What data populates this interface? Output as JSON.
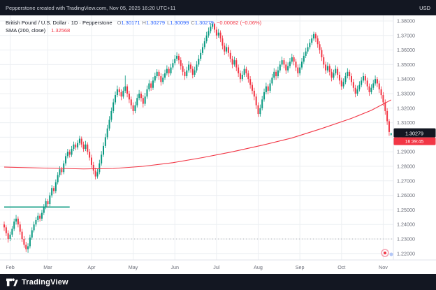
{
  "header": {
    "left_text": "Pepperstone created with TradingView.com, Nov 05, 2025 16:20 UTC+11",
    "currency": "USD"
  },
  "legend": {
    "title": "British Pound / U.S. Dollar · 1D · Pepperstone",
    "o_label": "O",
    "o": "1.30171",
    "h_label": "H",
    "h": "1.30279",
    "l_label": "L",
    "l": "1.30099",
    "c_label": "C",
    "c": "1.30279",
    "change": "−0.00082 (−0.06%)",
    "sma_label": "SMA (200, close)",
    "sma_value": "1.32568"
  },
  "footer": {
    "brand": "TradingView"
  },
  "axis": {
    "price_ticks": [
      "1.38000",
      "1.37000",
      "1.36000",
      "1.35000",
      "1.34000",
      "1.33000",
      "1.32000",
      "1.31000",
      "1.30000",
      "1.29000",
      "1.28000",
      "1.27000",
      "1.26000",
      "1.25000",
      "1.24000",
      "1.23000",
      "1.22000"
    ],
    "months": [
      {
        "label": "Feb",
        "index": 3
      },
      {
        "label": "Mar",
        "index": 22
      },
      {
        "label": "Apr",
        "index": 44
      },
      {
        "label": "May",
        "index": 65
      },
      {
        "label": "Jun",
        "index": 86
      },
      {
        "label": "Jul",
        "index": 107
      },
      {
        "label": "Aug",
        "index": 128
      },
      {
        "label": "Sep",
        "index": 149
      },
      {
        "label": "Oct",
        "index": 170
      },
      {
        "label": "Nov",
        "index": 191
      }
    ],
    "last_price": "1.30279",
    "countdown": "16:39:45"
  },
  "chart_data": {
    "type": "candlestick",
    "title": "British Pound / U.S. Dollar, 1D, Pepperstone",
    "ylabel": "USD",
    "ylim": [
      1.216,
      1.384
    ],
    "grid": true,
    "colors": {
      "up": "#089981",
      "down": "#f23645",
      "sma": "#f23645",
      "grid": "#eceff2",
      "axis_text": "#6a6d78"
    },
    "last": {
      "open": 1.30171,
      "high": 1.30279,
      "low": 1.30099,
      "close": 1.30279,
      "change": -0.00082,
      "change_pct": -0.06
    },
    "sma_200": {
      "name": "SMA (200, close)",
      "last_value": 1.32568,
      "points": [
        [
          0,
          1.2795
        ],
        [
          20,
          1.2788
        ],
        [
          40,
          1.2782
        ],
        [
          55,
          1.2785
        ],
        [
          70,
          1.28
        ],
        [
          85,
          1.2825
        ],
        [
          100,
          1.286
        ],
        [
          115,
          1.29
        ],
        [
          130,
          1.2945
        ],
        [
          145,
          1.2995
        ],
        [
          160,
          1.306
        ],
        [
          175,
          1.313
        ],
        [
          185,
          1.3185
        ],
        [
          195,
          1.3257
        ]
      ]
    },
    "horizontal_line": {
      "value": 1.252,
      "from_index": 0,
      "to_index": 33,
      "color": "#089981"
    },
    "dotted_level": 1.23,
    "candles": [
      [
        1.24,
        1.242,
        1.2355,
        1.238
      ],
      [
        1.238,
        1.2395,
        1.232,
        1.234
      ],
      [
        1.234,
        1.236,
        1.2275,
        1.23
      ],
      [
        1.23,
        1.235,
        1.2285,
        1.233
      ],
      [
        1.233,
        1.239,
        1.2315,
        1.237
      ],
      [
        1.237,
        1.244,
        1.2355,
        1.242
      ],
      [
        1.242,
        1.2465,
        1.24,
        1.244
      ],
      [
        1.244,
        1.2455,
        1.238,
        1.24
      ],
      [
        1.24,
        1.242,
        1.233,
        1.235
      ],
      [
        1.235,
        1.237,
        1.228,
        1.23
      ],
      [
        1.23,
        1.232,
        1.224,
        1.226
      ],
      [
        1.226,
        1.228,
        1.221,
        1.223
      ],
      [
        1.223,
        1.227,
        1.2205,
        1.225
      ],
      [
        1.225,
        1.233,
        1.2235,
        1.231
      ],
      [
        1.231,
        1.238,
        1.2295,
        1.236
      ],
      [
        1.236,
        1.242,
        1.2345,
        1.24
      ],
      [
        1.24,
        1.245,
        1.2385,
        1.243
      ],
      [
        1.243,
        1.248,
        1.2415,
        1.246
      ],
      [
        1.246,
        1.2475,
        1.242,
        1.244
      ],
      [
        1.244,
        1.25,
        1.2425,
        1.248
      ],
      [
        1.248,
        1.254,
        1.2465,
        1.252
      ],
      [
        1.252,
        1.258,
        1.2505,
        1.256
      ],
      [
        1.256,
        1.2575,
        1.252,
        1.254
      ],
      [
        1.254,
        1.262,
        1.2525,
        1.26
      ],
      [
        1.26,
        1.267,
        1.2585,
        1.265
      ],
      [
        1.265,
        1.2665,
        1.261,
        1.263
      ],
      [
        1.263,
        1.271,
        1.2615,
        1.269
      ],
      [
        1.269,
        1.276,
        1.2675,
        1.274
      ],
      [
        1.274,
        1.28,
        1.2725,
        1.278
      ],
      [
        1.278,
        1.2795,
        1.274,
        1.276
      ],
      [
        1.276,
        1.284,
        1.2745,
        1.282
      ],
      [
        1.282,
        1.289,
        1.2805,
        1.287
      ],
      [
        1.287,
        1.292,
        1.2855,
        1.29
      ],
      [
        1.29,
        1.2915,
        1.286,
        1.288
      ],
      [
        1.288,
        1.294,
        1.2865,
        1.292
      ],
      [
        1.292,
        1.297,
        1.2905,
        1.295
      ],
      [
        1.295,
        1.2965,
        1.291,
        1.293
      ],
      [
        1.293,
        1.298,
        1.2915,
        1.296
      ],
      [
        1.296,
        1.301,
        1.2945,
        1.299
      ],
      [
        1.299,
        1.3005,
        1.293,
        1.295
      ],
      [
        1.295,
        1.297,
        1.29,
        1.292
      ],
      [
        1.292,
        1.2975,
        1.2905,
        1.295
      ],
      [
        1.295,
        1.2965,
        1.288,
        1.29
      ],
      [
        1.29,
        1.292,
        1.284,
        1.286
      ],
      [
        1.286,
        1.288,
        1.279,
        1.281
      ],
      [
        1.281,
        1.283,
        1.2745,
        1.277
      ],
      [
        1.277,
        1.279,
        1.271,
        1.273
      ],
      [
        1.273,
        1.2785,
        1.2715,
        1.276
      ],
      [
        1.276,
        1.2845,
        1.2745,
        1.282
      ],
      [
        1.282,
        1.2905,
        1.2805,
        1.288
      ],
      [
        1.288,
        1.2965,
        1.2865,
        1.294
      ],
      [
        1.294,
        1.3025,
        1.2925,
        1.3
      ],
      [
        1.3,
        1.3085,
        1.2985,
        1.306
      ],
      [
        1.306,
        1.3145,
        1.3045,
        1.312
      ],
      [
        1.312,
        1.3205,
        1.3105,
        1.318
      ],
      [
        1.318,
        1.3265,
        1.3165,
        1.324
      ],
      [
        1.324,
        1.3315,
        1.3225,
        1.329
      ],
      [
        1.329,
        1.3355,
        1.3275,
        1.333
      ],
      [
        1.333,
        1.3345,
        1.3285,
        1.331
      ],
      [
        1.331,
        1.333,
        1.3255,
        1.328
      ],
      [
        1.328,
        1.3345,
        1.3265,
        1.332
      ],
      [
        1.332,
        1.3425,
        1.3305,
        1.335
      ],
      [
        1.335,
        1.3365,
        1.3275,
        1.33
      ],
      [
        1.33,
        1.332,
        1.3235,
        1.326
      ],
      [
        1.326,
        1.328,
        1.3195,
        1.322
      ],
      [
        1.322,
        1.324,
        1.3155,
        1.318
      ],
      [
        1.318,
        1.3245,
        1.3165,
        1.322
      ],
      [
        1.322,
        1.3295,
        1.3205,
        1.327
      ],
      [
        1.327,
        1.3325,
        1.3255,
        1.33
      ],
      [
        1.33,
        1.3315,
        1.3245,
        1.327
      ],
      [
        1.327,
        1.329,
        1.3205,
        1.323
      ],
      [
        1.323,
        1.3305,
        1.3215,
        1.328
      ],
      [
        1.328,
        1.3355,
        1.3265,
        1.333
      ],
      [
        1.333,
        1.3395,
        1.3315,
        1.337
      ],
      [
        1.337,
        1.3385,
        1.332,
        1.334
      ],
      [
        1.334,
        1.3415,
        1.3325,
        1.339
      ],
      [
        1.339,
        1.3445,
        1.3375,
        1.342
      ],
      [
        1.342,
        1.3468,
        1.3405,
        1.345
      ],
      [
        1.345,
        1.3465,
        1.3395,
        1.342
      ],
      [
        1.342,
        1.344,
        1.3355,
        1.338
      ],
      [
        1.338,
        1.3435,
        1.3365,
        1.341
      ],
      [
        1.341,
        1.3465,
        1.3395,
        1.344
      ],
      [
        1.344,
        1.3495,
        1.3425,
        1.347
      ],
      [
        1.347,
        1.3485,
        1.3415,
        1.344
      ],
      [
        1.344,
        1.3505,
        1.3425,
        1.348
      ],
      [
        1.348,
        1.3535,
        1.3465,
        1.351
      ],
      [
        1.351,
        1.3565,
        1.3495,
        1.354
      ],
      [
        1.354,
        1.3585,
        1.3525,
        1.356
      ],
      [
        1.356,
        1.3575,
        1.3505,
        1.353
      ],
      [
        1.353,
        1.355,
        1.3465,
        1.349
      ],
      [
        1.349,
        1.351,
        1.3425,
        1.345
      ],
      [
        1.345,
        1.347,
        1.3395,
        1.342
      ],
      [
        1.342,
        1.3485,
        1.3405,
        1.346
      ],
      [
        1.346,
        1.3525,
        1.3445,
        1.35
      ],
      [
        1.35,
        1.3515,
        1.3445,
        1.347
      ],
      [
        1.347,
        1.349,
        1.3405,
        1.343
      ],
      [
        1.343,
        1.3485,
        1.3415,
        1.346
      ],
      [
        1.346,
        1.3525,
        1.3445,
        1.35
      ],
      [
        1.35,
        1.3565,
        1.3485,
        1.354
      ],
      [
        1.354,
        1.3605,
        1.3525,
        1.358
      ],
      [
        1.358,
        1.3645,
        1.3565,
        1.362
      ],
      [
        1.362,
        1.3685,
        1.3605,
        1.366
      ],
      [
        1.366,
        1.3725,
        1.3645,
        1.37
      ],
      [
        1.37,
        1.3755,
        1.3685,
        1.373
      ],
      [
        1.373,
        1.3785,
        1.3715,
        1.376
      ],
      [
        1.376,
        1.379,
        1.3745,
        1.378
      ],
      [
        1.378,
        1.3788,
        1.372,
        1.374
      ],
      [
        1.374,
        1.376,
        1.3675,
        1.37
      ],
      [
        1.37,
        1.3745,
        1.3685,
        1.372
      ],
      [
        1.372,
        1.3735,
        1.3655,
        1.368
      ],
      [
        1.368,
        1.37,
        1.3605,
        1.363
      ],
      [
        1.363,
        1.365,
        1.3565,
        1.359
      ],
      [
        1.359,
        1.3645,
        1.3575,
        1.362
      ],
      [
        1.362,
        1.3635,
        1.3555,
        1.358
      ],
      [
        1.358,
        1.36,
        1.3515,
        1.354
      ],
      [
        1.354,
        1.356,
        1.3475,
        1.35
      ],
      [
        1.35,
        1.3555,
        1.3485,
        1.353
      ],
      [
        1.353,
        1.3545,
        1.3455,
        1.348
      ],
      [
        1.348,
        1.35,
        1.3415,
        1.344
      ],
      [
        1.344,
        1.346,
        1.3375,
        1.34
      ],
      [
        1.34,
        1.3455,
        1.3385,
        1.343
      ],
      [
        1.343,
        1.3495,
        1.3415,
        1.347
      ],
      [
        1.347,
        1.3485,
        1.3415,
        1.344
      ],
      [
        1.344,
        1.346,
        1.3375,
        1.34
      ],
      [
        1.34,
        1.342,
        1.3335,
        1.336
      ],
      [
        1.336,
        1.338,
        1.3295,
        1.332
      ],
      [
        1.332,
        1.334,
        1.3255,
        1.328
      ],
      [
        1.328,
        1.33,
        1.3195,
        1.322
      ],
      [
        1.322,
        1.324,
        1.314,
        1.316
      ],
      [
        1.316,
        1.3225,
        1.3142,
        1.32
      ],
      [
        1.32,
        1.3285,
        1.3185,
        1.326
      ],
      [
        1.326,
        1.3335,
        1.3245,
        1.331
      ],
      [
        1.331,
        1.3375,
        1.3295,
        1.335
      ],
      [
        1.335,
        1.3365,
        1.3295,
        1.332
      ],
      [
        1.332,
        1.3395,
        1.3305,
        1.337
      ],
      [
        1.337,
        1.3435,
        1.3355,
        1.341
      ],
      [
        1.341,
        1.3475,
        1.3395,
        1.345
      ],
      [
        1.345,
        1.3465,
        1.3395,
        1.342
      ],
      [
        1.342,
        1.3485,
        1.3405,
        1.346
      ],
      [
        1.346,
        1.3525,
        1.3445,
        1.35
      ],
      [
        1.35,
        1.3555,
        1.3485,
        1.353
      ],
      [
        1.353,
        1.3545,
        1.3475,
        1.35
      ],
      [
        1.35,
        1.352,
        1.3435,
        1.346
      ],
      [
        1.346,
        1.3515,
        1.3445,
        1.349
      ],
      [
        1.349,
        1.3545,
        1.3475,
        1.352
      ],
      [
        1.352,
        1.3575,
        1.3505,
        1.355
      ],
      [
        1.355,
        1.3565,
        1.3495,
        1.352
      ],
      [
        1.352,
        1.354,
        1.3455,
        1.348
      ],
      [
        1.348,
        1.35,
        1.3415,
        1.344
      ],
      [
        1.344,
        1.3505,
        1.3425,
        1.348
      ],
      [
        1.348,
        1.3545,
        1.3465,
        1.352
      ],
      [
        1.352,
        1.3585,
        1.3505,
        1.356
      ],
      [
        1.356,
        1.3615,
        1.3545,
        1.359
      ],
      [
        1.359,
        1.3645,
        1.3575,
        1.362
      ],
      [
        1.362,
        1.3675,
        1.3605,
        1.365
      ],
      [
        1.365,
        1.3705,
        1.3635,
        1.368
      ],
      [
        1.368,
        1.3726,
        1.3665,
        1.371
      ],
      [
        1.371,
        1.3722,
        1.3655,
        1.368
      ],
      [
        1.368,
        1.37,
        1.3615,
        1.364
      ],
      [
        1.364,
        1.366,
        1.3575,
        1.36
      ],
      [
        1.36,
        1.362,
        1.3525,
        1.355
      ],
      [
        1.355,
        1.357,
        1.3475,
        1.35
      ],
      [
        1.35,
        1.352,
        1.3435,
        1.346
      ],
      [
        1.346,
        1.3515,
        1.3445,
        1.349
      ],
      [
        1.349,
        1.3505,
        1.3425,
        1.345
      ],
      [
        1.345,
        1.347,
        1.3385,
        1.341
      ],
      [
        1.341,
        1.3465,
        1.3395,
        1.344
      ],
      [
        1.344,
        1.3495,
        1.3425,
        1.347
      ],
      [
        1.347,
        1.3485,
        1.3405,
        1.343
      ],
      [
        1.343,
        1.345,
        1.3365,
        1.339
      ],
      [
        1.339,
        1.341,
        1.3325,
        1.335
      ],
      [
        1.335,
        1.3405,
        1.3335,
        1.338
      ],
      [
        1.338,
        1.3445,
        1.3365,
        1.342
      ],
      [
        1.342,
        1.3475,
        1.3405,
        1.345
      ],
      [
        1.345,
        1.3465,
        1.3395,
        1.342
      ],
      [
        1.342,
        1.344,
        1.3355,
        1.338
      ],
      [
        1.338,
        1.34,
        1.3315,
        1.334
      ],
      [
        1.334,
        1.336,
        1.3275,
        1.33
      ],
      [
        1.33,
        1.3355,
        1.3285,
        1.333
      ],
      [
        1.333,
        1.3385,
        1.3315,
        1.336
      ],
      [
        1.336,
        1.3415,
        1.3345,
        1.339
      ],
      [
        1.339,
        1.3445,
        1.3375,
        1.342
      ],
      [
        1.342,
        1.3435,
        1.3365,
        1.339
      ],
      [
        1.339,
        1.341,
        1.3325,
        1.335
      ],
      [
        1.335,
        1.337,
        1.3285,
        1.331
      ],
      [
        1.331,
        1.3365,
        1.3295,
        1.334
      ],
      [
        1.334,
        1.3395,
        1.3325,
        1.337
      ],
      [
        1.337,
        1.3425,
        1.3355,
        1.34
      ],
      [
        1.34,
        1.3415,
        1.3345,
        1.337
      ],
      [
        1.337,
        1.339,
        1.3305,
        1.333
      ],
      [
        1.333,
        1.335,
        1.3265,
        1.329
      ],
      [
        1.329,
        1.331,
        1.3215,
        1.324
      ],
      [
        1.324,
        1.326,
        1.3155,
        1.318
      ],
      [
        1.318,
        1.32,
        1.3085,
        1.311
      ],
      [
        1.311,
        1.3125,
        1.301,
        1.30361
      ],
      [
        1.30171,
        1.30279,
        1.30099,
        1.30279
      ]
    ]
  }
}
